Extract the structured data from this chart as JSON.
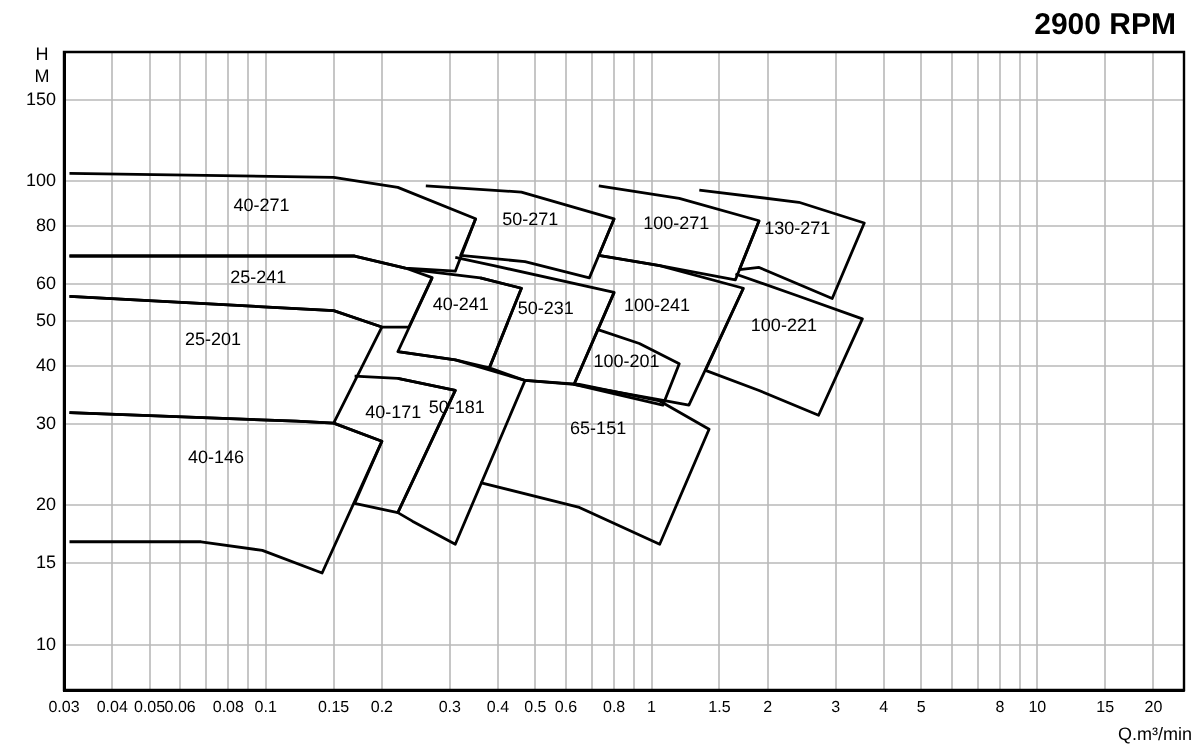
{
  "chart_data": {
    "type": "line",
    "title": "2900 RPM",
    "xlabel": "Q.m³/min",
    "ylabel": "H M",
    "log": "xy",
    "grid": true,
    "legend": false,
    "marker": "none",
    "line_style": "solid",
    "xlim": [
      0.03,
      24
    ],
    "ylim": [
      8,
      190
    ],
    "xticks": [
      0.03,
      0.04,
      0.05,
      0.06,
      {
        "value": 0.07,
        "label": null
      },
      0.08,
      {
        "value": 0.09,
        "label": null
      },
      0.1,
      0.15,
      0.2,
      0.3,
      0.4,
      0.5,
      0.6,
      {
        "value": 0.7,
        "label": null
      },
      0.8,
      {
        "value": 0.9,
        "label": null
      },
      1,
      1.5,
      2,
      3,
      4,
      5,
      {
        "value": 6,
        "label": null
      },
      {
        "value": 7,
        "label": null
      },
      8,
      {
        "value": 9,
        "label": null
      },
      10,
      15,
      20
    ],
    "yticks": [
      10,
      15,
      20,
      30,
      40,
      50,
      60,
      80,
      100,
      150
    ],
    "series": [
      {
        "name": "40-271",
        "color": "#000000",
        "x": [
          0.031,
          0.15,
          0.22,
          0.35,
          0.31,
          0.23,
          0.17,
          0.031
        ],
        "values": [
          104,
          102,
          97,
          83,
          64,
          65,
          69,
          69
        ]
      },
      {
        "name": "25-241",
        "color": "#000000",
        "x": [
          0.031,
          0.17,
          0.23,
          0.27,
          0.235,
          0.2,
          0.15,
          0.031
        ],
        "values": [
          69,
          69,
          65,
          62,
          48.5,
          48.5,
          52.6,
          56.5
        ]
      },
      {
        "name": "25-201",
        "color": "#000000",
        "x": [
          0.031,
          0.15,
          0.2,
          0.15,
          0.12,
          0.031
        ],
        "values": [
          56.5,
          52.6,
          48.5,
          30.1,
          30.4,
          31.7
        ]
      },
      {
        "name": "40-146",
        "color": "#000000",
        "x": [
          0.031,
          0.12,
          0.15,
          0.2,
          0.14,
          0.098,
          0.068,
          0.031
        ],
        "values": [
          31.7,
          30.4,
          30.1,
          27.5,
          14.3,
          16,
          16.7,
          16.7
        ]
      },
      {
        "name": "40-171",
        "color": "#000000",
        "x": [
          0.17,
          0.22,
          0.31,
          0.22,
          0.17,
          0.2,
          0.15
        ],
        "values": [
          38,
          37.6,
          35.4,
          19.3,
          20.2,
          27.5,
          30.1
        ]
      },
      {
        "name": "50-181",
        "color": "#000000",
        "x": [
          0.22,
          0.31,
          0.47,
          0.31,
          0.24,
          0.22,
          0.31,
          0.22
        ],
        "values": [
          42.9,
          41.2,
          37.2,
          16.5,
          18.5,
          19.3,
          35.4,
          37.6
        ]
      },
      {
        "name": "40-241",
        "color": "#000000",
        "x": [
          0.24,
          0.36,
          0.46,
          0.38,
          0.31,
          0.22,
          0.27
        ],
        "values": [
          64.5,
          61.9,
          58.8,
          39.6,
          41.2,
          42.9,
          61.9
        ]
      },
      {
        "name": "50-271",
        "color": "#000000",
        "x": [
          0.26,
          0.46,
          0.8,
          0.69,
          0.47,
          0.32,
          0.35
        ],
        "values": [
          97.7,
          94.8,
          83,
          61.9,
          67.1,
          69.2,
          83
        ]
      },
      {
        "name": "50-231",
        "color": "#000000",
        "x": [
          0.31,
          0.39,
          0.8,
          0.63,
          0.47,
          0.38,
          0.46,
          0.36
        ],
        "values": [
          68.5,
          65.8,
          57.6,
          36.5,
          37.2,
          39.6,
          58.8,
          61.9
        ]
      },
      {
        "name": "100-271",
        "color": "#000000",
        "x": [
          0.73,
          1.18,
          1.9,
          1.65,
          1.05,
          0.73,
          0.8
        ],
        "values": [
          97.7,
          91.9,
          82.2,
          61.3,
          65.8,
          69.2,
          83
        ]
      },
      {
        "name": "130-271",
        "color": "#000000",
        "x": [
          1.33,
          2.41,
          3.56,
          2.94,
          1.9,
          1.69,
          1.9
        ],
        "values": [
          95.7,
          90.1,
          81.3,
          55.9,
          65.2,
          64.5,
          82.2
        ]
      },
      {
        "name": "100-241",
        "color": "#000000",
        "x": [
          0.73,
          1.05,
          1.73,
          1.25,
          1.09,
          0.63,
          0.8
        ],
        "values": [
          69.2,
          65.8,
          58.8,
          32.9,
          33.6,
          36.5,
          57.6
        ]
      },
      {
        "name": "100-201",
        "color": "#000000",
        "x": [
          0.72,
          0.93,
          1.18,
          1.07,
          0.63
        ],
        "values": [
          48,
          44.7,
          40.4,
          32.9,
          36.5
        ]
      },
      {
        "name": "100-221",
        "color": "#000000",
        "x": [
          1.65,
          2.41,
          3.52,
          2.71,
          1.9,
          1.38,
          1.73
        ],
        "values": [
          63.1,
          56.5,
          50.5,
          31.3,
          35.4,
          39.1,
          58.8
        ]
      },
      {
        "name": "65-151",
        "color": "#000000",
        "x": [
          0.47,
          0.65,
          1.05,
          1.41,
          1.05,
          0.65,
          0.36
        ],
        "values": [
          37.2,
          36.5,
          33.6,
          29.2,
          16.5,
          19.8,
          22.4
        ]
      }
    ]
  }
}
